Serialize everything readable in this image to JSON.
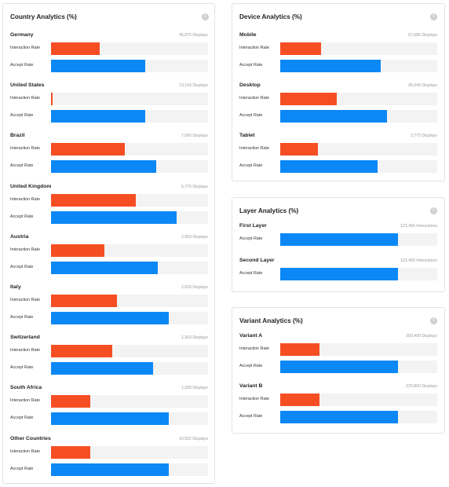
{
  "colors": {
    "interaction": "#f64e23",
    "accept": "#0c88f6",
    "track": "#f3f3f3"
  },
  "labels": {
    "interaction": "Interaction Rate",
    "accept": "Accept Rate"
  },
  "country": {
    "title": "Country Analytics (%)",
    "info_icon": "info-icon",
    "items": [
      {
        "name": "Germany",
        "count": "45,875 Displays",
        "interaction": 31,
        "accept": 60
      },
      {
        "name": "United States",
        "count": "13,169 Displays",
        "interaction": 1,
        "accept": 60
      },
      {
        "name": "Brazil",
        "count": "7,560 Displays",
        "interaction": 47,
        "accept": 67
      },
      {
        "name": "United Kingdom",
        "count": "5,775 Displays",
        "interaction": 54,
        "accept": 80
      },
      {
        "name": "Austria",
        "count": "2,953 Displays",
        "interaction": 34,
        "accept": 68
      },
      {
        "name": "Italy",
        "count": "2,626 Displays",
        "interaction": 42,
        "accept": 75
      },
      {
        "name": "Switzerland",
        "count": "1,303 Displays",
        "interaction": 39,
        "accept": 65
      },
      {
        "name": "South Africa",
        "count": "1,200 Displays",
        "interaction": 25,
        "accept": 75
      },
      {
        "name": "Other Countries",
        "count": "10,562 Displays",
        "interaction": 25,
        "accept": 75
      }
    ]
  },
  "device": {
    "title": "Device Analytics (%)",
    "info_icon": "info-icon",
    "items": [
      {
        "name": "Mobile",
        "count": "57,686 Displays",
        "interaction": 26,
        "accept": 64
      },
      {
        "name": "Desktop",
        "count": "45,649 Displays",
        "interaction": 36,
        "accept": 68
      },
      {
        "name": "Tablet",
        "count": "3,775 Displays",
        "interaction": 24,
        "accept": 62
      }
    ]
  },
  "layer": {
    "title": "Layer Analytics (%)",
    "info_icon": "info-icon",
    "items": [
      {
        "name": "First Layer",
        "count": "123,456 Interactions",
        "accept": 75
      },
      {
        "name": "Second Layer",
        "count": "123,456 Interactions",
        "accept": 75
      }
    ]
  },
  "variant": {
    "title": "Variant Analytics (%)",
    "info_icon": "info-icon",
    "items": [
      {
        "name": "Variant A",
        "count": "300,400 Displays",
        "interaction": 25,
        "accept": 75
      },
      {
        "name": "Variant B",
        "count": "229,800 Displays",
        "interaction": 25,
        "accept": 75
      }
    ]
  }
}
